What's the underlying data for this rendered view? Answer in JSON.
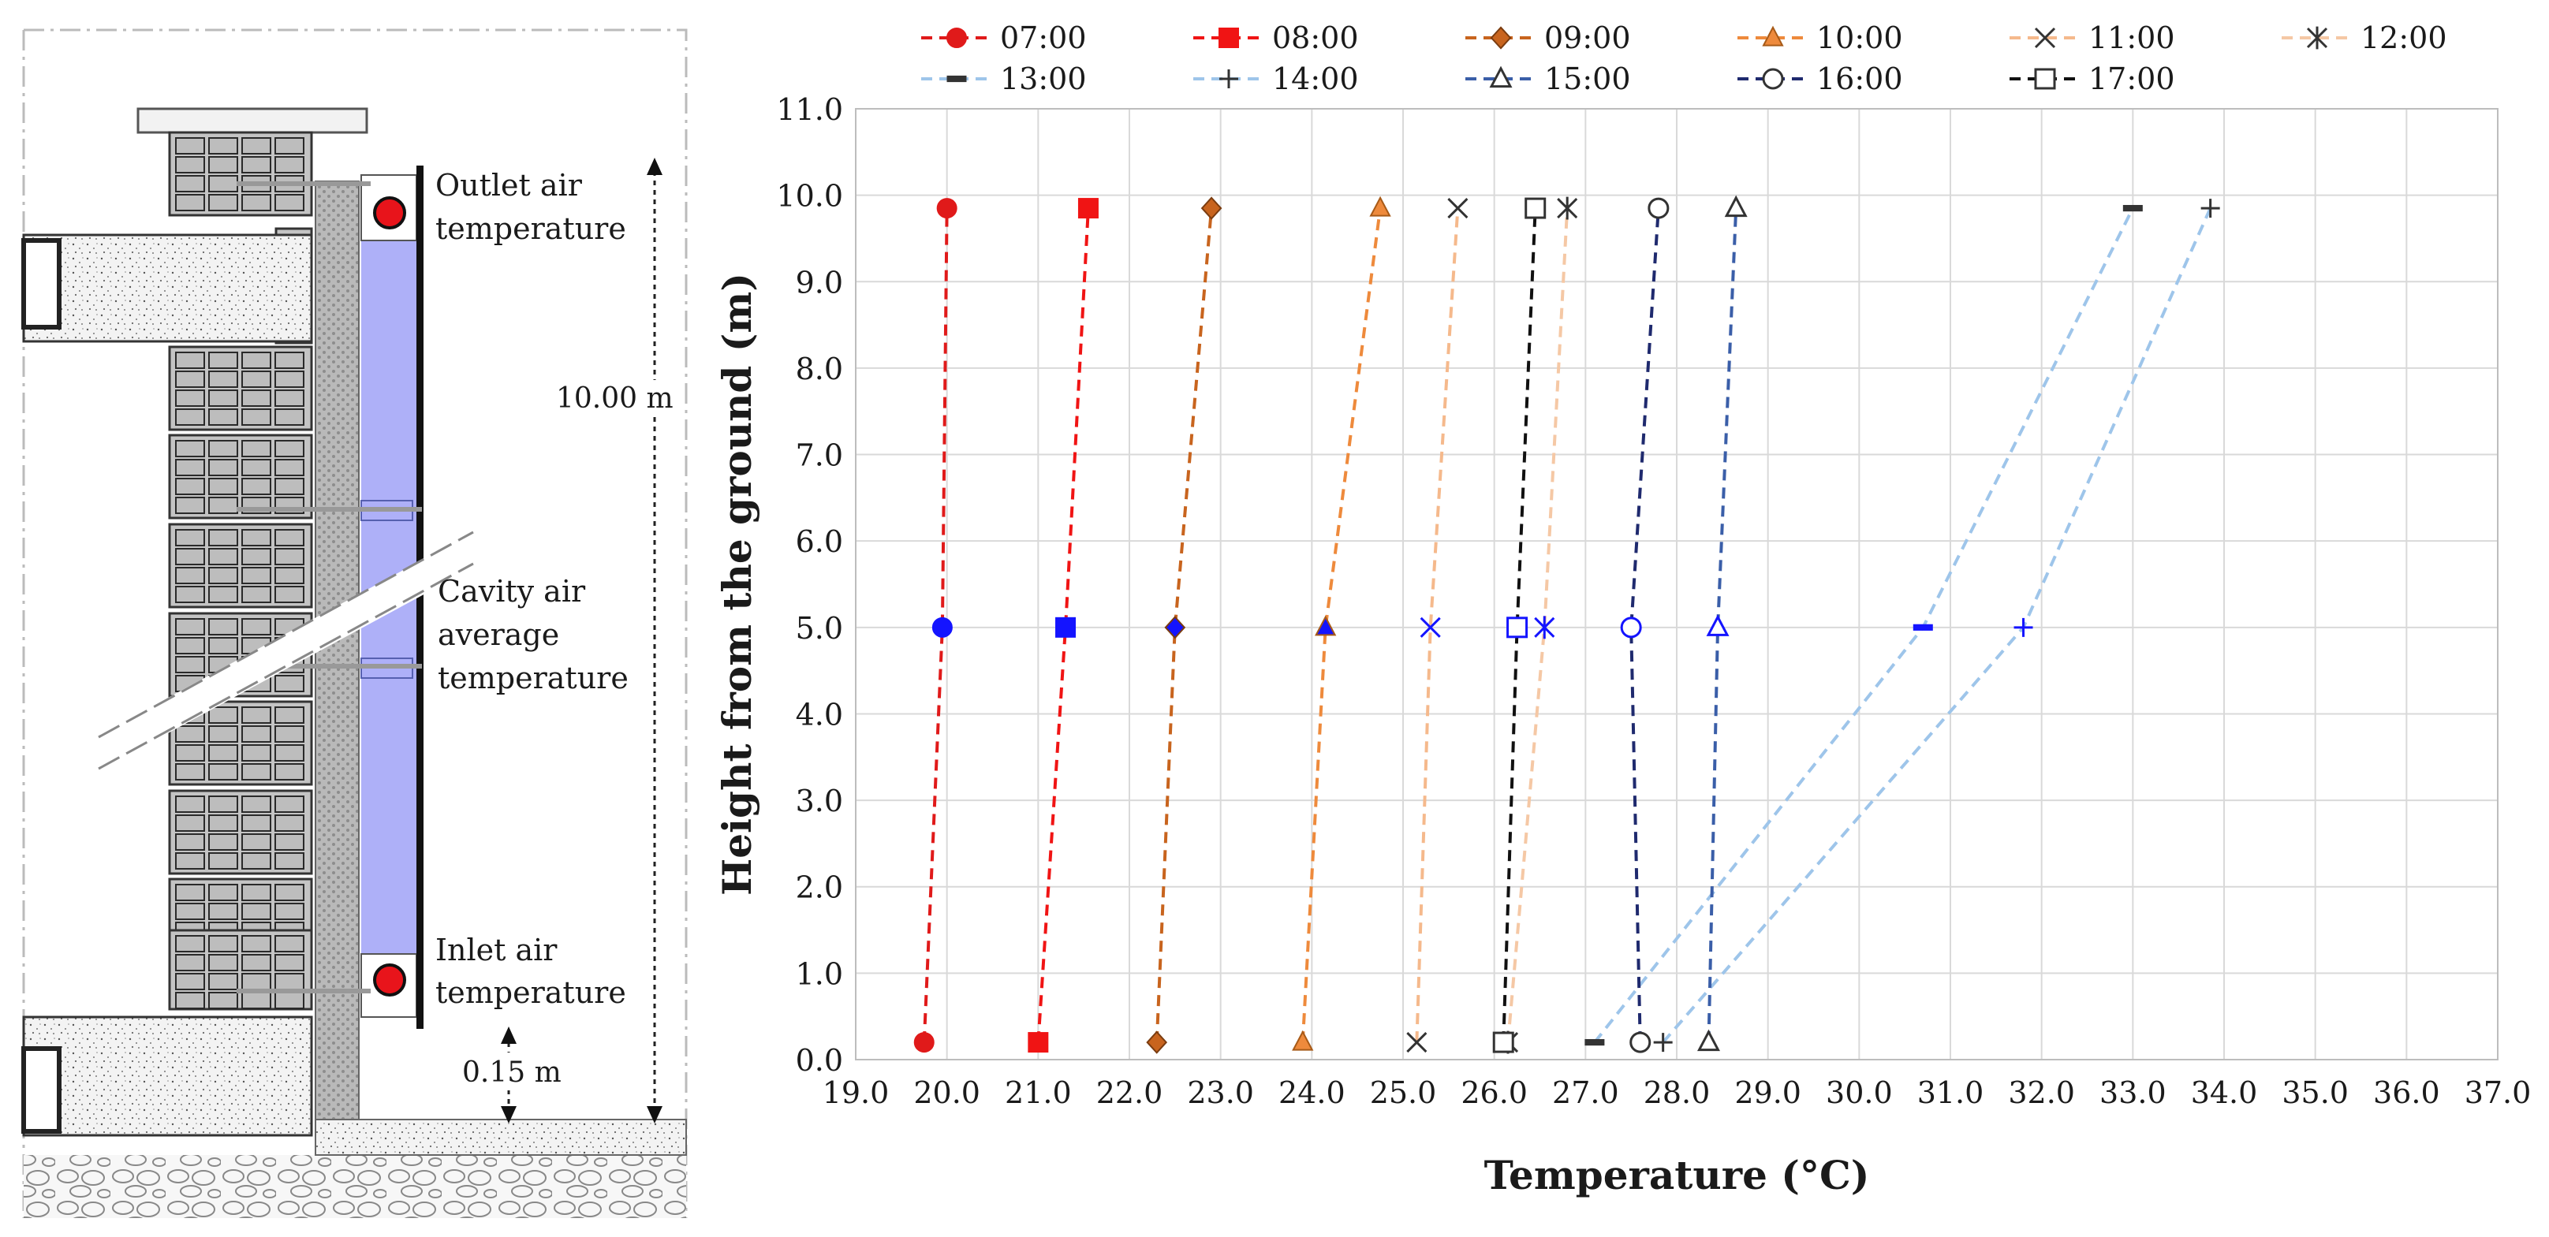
{
  "diagram": {
    "outlet_label": [
      "Outlet air",
      "temperature"
    ],
    "cavity_label": [
      "Cavity air",
      "average",
      "temperature"
    ],
    "inlet_label": [
      "Inlet air",
      "temperature"
    ],
    "height_label": "10.00 m",
    "offset_label": "0.15 m",
    "cavity_color": "#aeb0f8",
    "sensor_color": "#e8141b"
  },
  "chart_data": {
    "type": "line",
    "xlabel": "Temperature (°C)",
    "ylabel": "Height from the ground (m)",
    "xlim": [
      19.0,
      37.0
    ],
    "ylim": [
      0.0,
      11.0
    ],
    "xticks": [
      "19.0",
      "20.0",
      "21.0",
      "22.0",
      "23.0",
      "24.0",
      "25.0",
      "26.0",
      "27.0",
      "28.0",
      "29.0",
      "30.0",
      "31.0",
      "32.0",
      "33.0",
      "34.0",
      "35.0",
      "36.0",
      "37.0"
    ],
    "yticks": [
      "0.0",
      "1.0",
      "2.0",
      "3.0",
      "4.0",
      "5.0",
      "6.0",
      "7.0",
      "8.0",
      "9.0",
      "10.0",
      "11.0"
    ],
    "grid": true,
    "legend_position": "top",
    "mid_marker_color": "#1414ff",
    "heights": [
      0.2,
      5.0,
      9.85
    ],
    "series": [
      {
        "name": "07:00",
        "color": "#e01a1a",
        "marker": "circle-filled",
        "x": [
          19.75,
          19.95,
          20.0
        ],
        "y": [
          0.2,
          5.0,
          9.85
        ]
      },
      {
        "name": "08:00",
        "color": "#f01414",
        "marker": "square-filled",
        "x": [
          21.0,
          21.3,
          21.55
        ],
        "y": [
          0.2,
          5.0,
          9.85
        ]
      },
      {
        "name": "09:00",
        "color": "#c8641e",
        "marker": "diamond-filled",
        "x": [
          22.3,
          22.5,
          22.9
        ],
        "y": [
          0.2,
          5.0,
          9.85
        ]
      },
      {
        "name": "10:00",
        "color": "#ee8a3c",
        "marker": "triangle-filled",
        "x": [
          23.9,
          24.15,
          24.75
        ],
        "y": [
          0.2,
          5.0,
          9.85
        ]
      },
      {
        "name": "11:00",
        "color": "#f5b98c",
        "marker": "x",
        "x": [
          25.15,
          25.3,
          25.6
        ],
        "y": [
          0.2,
          5.0,
          9.85
        ]
      },
      {
        "name": "12:00",
        "color": "#f5c8a5",
        "marker": "asterisk",
        "x": [
          26.15,
          26.55,
          26.8
        ],
        "y": [
          0.2,
          5.0,
          9.85
        ]
      },
      {
        "name": "13:00",
        "color": "#9ec5ea",
        "marker": "dash",
        "x": [
          27.1,
          30.7,
          33.0
        ],
        "y": [
          0.2,
          5.0,
          9.85
        ]
      },
      {
        "name": "14:00",
        "color": "#9ec5ea",
        "marker": "plus",
        "x": [
          27.85,
          31.8,
          33.85
        ],
        "y": [
          0.2,
          5.0,
          9.85
        ]
      },
      {
        "name": "15:00",
        "color": "#3a5ea8",
        "marker": "triangle-open",
        "x": [
          28.35,
          28.45,
          28.65
        ],
        "y": [
          0.2,
          5.0,
          9.85
        ]
      },
      {
        "name": "16:00",
        "color": "#1f2a6e",
        "marker": "circle-open",
        "x": [
          27.6,
          27.5,
          27.8
        ],
        "y": [
          0.2,
          5.0,
          9.85
        ]
      },
      {
        "name": "17:00",
        "color": "#111111",
        "marker": "square-open",
        "x": [
          26.1,
          26.25,
          26.45
        ],
        "y": [
          0.2,
          5.0,
          9.85
        ]
      }
    ]
  }
}
